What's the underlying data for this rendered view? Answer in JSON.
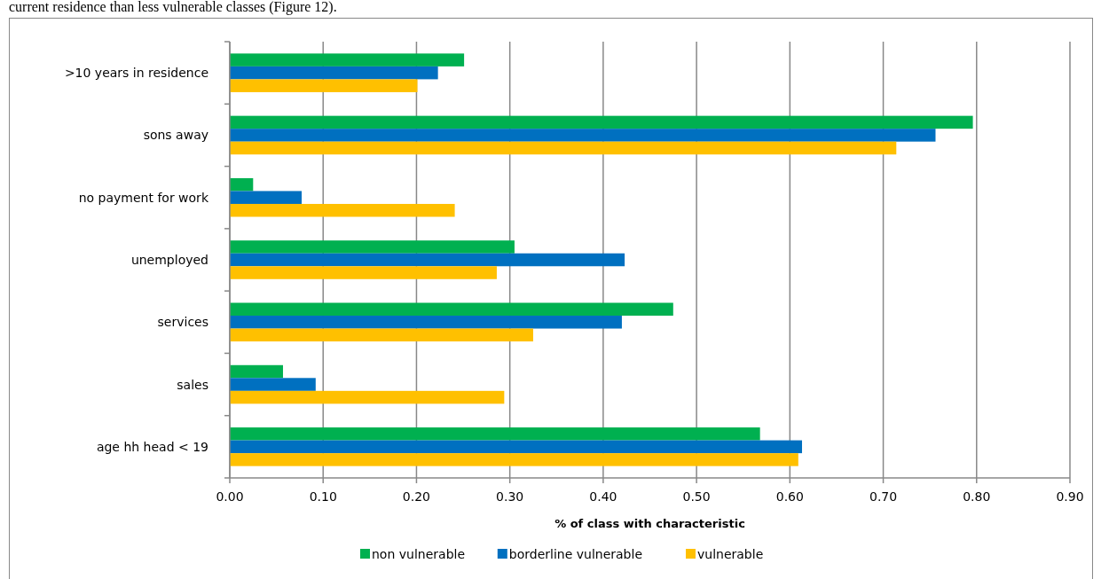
{
  "chart_data": {
    "type": "bar",
    "orientation": "horizontal",
    "xlabel": "% of class  with characteristic",
    "annotations": [
      "current residence than less vulnerable classes (Figure 12)."
    ],
    "categories": [
      ">10 years in residence",
      "sons away",
      "no payment for work",
      "unemployed",
      "services",
      "sales",
      "age hh head < 19"
    ],
    "series": [
      {
        "name": "non vulnerable",
        "color": "#00b050",
        "values": [
          0.251,
          0.796,
          0.025,
          0.305,
          0.475,
          0.057,
          0.568
        ]
      },
      {
        "name": "borderline vulnerable",
        "color": "#0070c0",
        "values": [
          0.223,
          0.756,
          0.077,
          0.423,
          0.42,
          0.092,
          0.613
        ]
      },
      {
        "name": "vulnerable",
        "color": "#ffc000",
        "values": [
          0.201,
          0.714,
          0.241,
          0.286,
          0.325,
          0.294,
          0.609
        ]
      }
    ],
    "xlim": [
      0,
      0.9
    ],
    "xticks": [
      {
        "value": 0,
        "label": "0.00"
      },
      {
        "value": 0.1,
        "label": "0.10"
      },
      {
        "value": 0.2,
        "label": "0.20"
      },
      {
        "value": 0.3,
        "label": "0.30"
      },
      {
        "value": 0.4,
        "label": "0.40"
      },
      {
        "value": 0.5,
        "label": "0.50"
      },
      {
        "value": 0.6,
        "label": "0.60"
      },
      {
        "value": 0.7,
        "label": "0.70"
      },
      {
        "value": 0.8,
        "label": "0.80"
      },
      {
        "value": 0.9,
        "label": "0.90"
      }
    ],
    "grid": "x",
    "legend": "bottom"
  }
}
